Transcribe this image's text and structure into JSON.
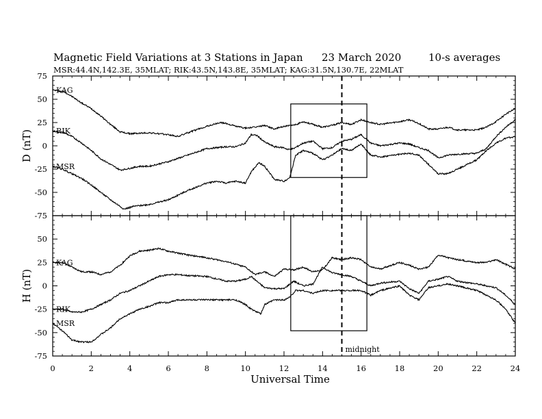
{
  "chart_data": {
    "type": "line",
    "title": "Magnetic Field Variations at 3 Stations in Japan",
    "date": "23 March   2020",
    "averaging": "10-s averages",
    "subtitle": "MSR:44.4N,142.3E, 35MLAT;  RIK:43.5N,143.8E, 35MLAT;  KAG:31.5N,130.7E, 22MLAT",
    "xlabel": "Universal Time",
    "xlim": [
      0,
      24
    ],
    "xticks": [
      0,
      2,
      4,
      6,
      8,
      10,
      12,
      14,
      16,
      18,
      20,
      22,
      24
    ],
    "midnight_marker": {
      "x": 15,
      "label": "midnight"
    },
    "highlight_box": {
      "x_start": 12.35,
      "x_end": 16.3
    },
    "panels": [
      {
        "ylabel": "D (nT)",
        "ylim": [
          -75,
          75
        ],
        "yticks": [
          75,
          50,
          25,
          0,
          -25,
          -50,
          -75
        ],
        "box_y": [
          -34,
          45
        ],
        "series": [
          {
            "name": "KAG",
            "x": [
              0,
              0.6,
              1,
              1.5,
              2,
              2.5,
              3,
              3.5,
              4,
              5,
              6,
              6.5,
              7,
              8,
              8.7,
              9,
              9.5,
              10,
              10.5,
              11,
              11.5,
              12,
              12.5,
              13,
              13.5,
              14,
              14.5,
              15,
              15.5,
              16,
              16.5,
              17,
              18,
              18.5,
              19,
              19.5,
              20,
              20.5,
              21,
              22,
              22.5,
              23,
              23.5,
              24
            ],
            "y": [
              60,
              58,
              53,
              46,
              40,
              32,
              23,
              15,
              13,
              14,
              12,
              10,
              14,
              21,
              25,
              24,
              21,
              19,
              20,
              22,
              18,
              21,
              22,
              26,
              23,
              20,
              22,
              25,
              23,
              28,
              25,
              23,
              26,
              28,
              24,
              18,
              18,
              20,
              17,
              17,
              20,
              26,
              34,
              40
            ]
          },
          {
            "name": "RIK",
            "x": [
              0,
              0.6,
              1,
              1.5,
              2,
              2.5,
              3,
              3.5,
              3.8,
              4.5,
              5,
              6,
              7,
              8,
              9,
              9.5,
              10,
              10.3,
              10.6,
              11,
              11.5,
              12,
              12.2,
              12.5,
              13,
              13.5,
              14,
              14.5,
              15,
              15.5,
              16,
              16.5,
              17,
              18,
              18.5,
              19,
              19.5,
              20,
              20.5,
              21,
              22,
              22.5,
              23,
              23.5,
              24
            ],
            "y": [
              16,
              14,
              10,
              3,
              -5,
              -14,
              -20,
              -26,
              -25,
              -22,
              -22,
              -17,
              -10,
              -3,
              -1,
              -1,
              3,
              12,
              11,
              4,
              -1,
              -2,
              -4,
              -3,
              3,
              5,
              -3,
              -2,
              5,
              7,
              12,
              3,
              0,
              3,
              2,
              -2,
              -5,
              -13,
              -10,
              -9,
              -8,
              -3,
              10,
              20,
              28
            ]
          },
          {
            "name": "MSR",
            "x": [
              0,
              0.5,
              1,
              1.5,
              2,
              2.5,
              3,
              3.5,
              3.7,
              4.2,
              5,
              6,
              7,
              8,
              8.5,
              9,
              9.5,
              10,
              10.3,
              10.7,
              11,
              11.5,
              12,
              12.3,
              12.6,
              13,
              13.5,
              14,
              14.5,
              15,
              15.5,
              16,
              16.5,
              17,
              18,
              18.5,
              19,
              19.5,
              20,
              20.5,
              21,
              22,
              22.5,
              23,
              23.5,
              24
            ],
            "y": [
              -22,
              -25,
              -30,
              -35,
              -42,
              -50,
              -58,
              -65,
              -68,
              -65,
              -63,
              -58,
              -48,
              -40,
              -38,
              -40,
              -38,
              -40,
              -28,
              -18,
              -22,
              -36,
              -38,
              -34,
              -10,
              -5,
              -8,
              -15,
              -10,
              -3,
              -5,
              2,
              -10,
              -12,
              -9,
              -8,
              -10,
              -20,
              -30,
              -30,
              -25,
              -15,
              -5,
              3,
              8,
              10
            ]
          }
        ]
      },
      {
        "ylabel": "H (nT)",
        "ylim": [
          -75,
          75
        ],
        "yticks": [
          75,
          50,
          25,
          0,
          -25,
          -50,
          -75
        ],
        "box_y": [
          -48,
          75
        ],
        "series": [
          {
            "name": "KAG",
            "x": [
              0,
              0.5,
              1,
              1.5,
              2,
              2.5,
              3,
              3.5,
              4,
              4.5,
              5,
              5.5,
              6,
              6.5,
              7,
              8,
              9,
              9.5,
              10,
              10.5,
              11,
              11.5,
              12,
              12.5,
              13,
              13.5,
              14,
              14.5,
              15,
              15.5,
              16,
              16.5,
              17,
              18,
              18.5,
              19,
              19.5,
              20,
              20.5,
              21,
              22,
              22.5,
              23,
              23.5,
              24
            ],
            "y": [
              25,
              25,
              20,
              15,
              15,
              12,
              15,
              22,
              32,
              37,
              38,
              40,
              37,
              35,
              33,
              30,
              26,
              23,
              20,
              12,
              15,
              10,
              18,
              17,
              20,
              15,
              17,
              30,
              28,
              30,
              28,
              20,
              18,
              25,
              22,
              18,
              20,
              33,
              30,
              28,
              25,
              25,
              28,
              23,
              18
            ]
          },
          {
            "name": "RIK",
            "x": [
              0,
              0.5,
              1,
              1.5,
              2,
              2.5,
              3,
              3.5,
              4,
              4.5,
              5,
              5.5,
              6,
              6.5,
              7,
              8,
              9,
              9.5,
              10,
              10.3,
              10.7,
              11,
              11.5,
              12,
              12.5,
              13,
              13.5,
              14,
              14.5,
              15,
              15.5,
              16,
              16.5,
              17,
              18,
              18.5,
              19,
              19.5,
              20,
              20.5,
              21,
              22,
              22.5,
              23,
              23.5,
              24
            ],
            "y": [
              -25,
              -25,
              -28,
              -28,
              -25,
              -20,
              -15,
              -8,
              -5,
              0,
              5,
              10,
              12,
              12,
              11,
              10,
              5,
              5,
              7,
              10,
              3,
              -2,
              -3,
              -3,
              5,
              0,
              2,
              20,
              14,
              12,
              10,
              5,
              0,
              3,
              5,
              -3,
              -8,
              5,
              7,
              10,
              5,
              2,
              0,
              -2,
              -10,
              -20
            ]
          },
          {
            "name": "MSR",
            "x": [
              0,
              0.5,
              1,
              1.5,
              2,
              2.5,
              3,
              3.5,
              4,
              4.5,
              5,
              5.5,
              6,
              6.5,
              7,
              8,
              9,
              9.5,
              10,
              10.3,
              10.8,
              11,
              11.5,
              12,
              12.3,
              12.6,
              13,
              13.5,
              14,
              14.5,
              15,
              15.5,
              16,
              16.5,
              17,
              18,
              18.5,
              19,
              19.5,
              20,
              20.5,
              21,
              22,
              22.5,
              23,
              23.5,
              24
            ],
            "y": [
              -40,
              -48,
              -58,
              -60,
              -60,
              -52,
              -45,
              -35,
              -30,
              -25,
              -22,
              -18,
              -18,
              -15,
              -15,
              -15,
              -15,
              -15,
              -20,
              -25,
              -30,
              -20,
              -15,
              -15,
              -12,
              -5,
              -5,
              -8,
              -5,
              -5,
              -5,
              -5,
              -5,
              -10,
              -5,
              0,
              -10,
              -15,
              -2,
              0,
              2,
              0,
              -5,
              -10,
              -15,
              -25,
              -40
            ]
          }
        ]
      }
    ]
  }
}
